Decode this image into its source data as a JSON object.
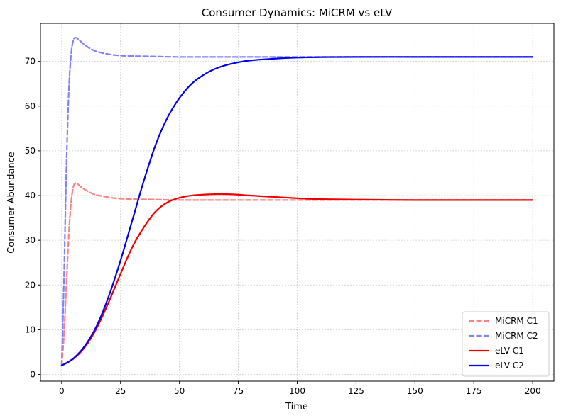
{
  "chart_data": {
    "type": "line",
    "title": "Consumer Dynamics: MiCRM vs eLV",
    "xlabel": "Time",
    "ylabel": "Consumer Abundance",
    "xlim": [
      -9,
      209
    ],
    "ylim": [
      -1.5,
      78.5
    ],
    "xticks": [
      0,
      25,
      50,
      75,
      100,
      125,
      150,
      175,
      200
    ],
    "yticks": [
      0,
      10,
      20,
      30,
      40,
      50,
      60,
      70
    ],
    "grid": true,
    "legend_position": "lower-right",
    "series": [
      {
        "name": "MiCRM C1",
        "color": "#ff8080",
        "style": "dashed",
        "x": [
          0,
          1,
          2,
          3,
          4,
          5,
          6,
          7,
          8,
          10,
          12,
          15,
          20,
          25,
          30,
          40,
          50,
          75,
          100,
          125,
          150,
          175,
          200
        ],
        "y": [
          2,
          9,
          20,
          31,
          38.5,
          42,
          42.8,
          42.5,
          42,
          41.3,
          40.7,
          40.1,
          39.6,
          39.3,
          39.2,
          39.1,
          39.0,
          39.0,
          39.0,
          39.0,
          39.0,
          39.0,
          39.0
        ]
      },
      {
        "name": "MiCRM C2",
        "color": "#8080ff",
        "style": "dashed",
        "x": [
          0,
          1,
          2,
          3,
          4,
          5,
          6,
          7,
          8,
          10,
          12,
          15,
          20,
          25,
          30,
          40,
          50,
          75,
          100,
          125,
          150,
          175,
          200
        ],
        "y": [
          2,
          22,
          46,
          63,
          71.5,
          74.8,
          75.3,
          75.0,
          74.5,
          73.6,
          72.9,
          72.2,
          71.6,
          71.3,
          71.2,
          71.1,
          71.0,
          71.0,
          71.0,
          71.0,
          71.0,
          71.0,
          71.0
        ]
      },
      {
        "name": "eLV C1",
        "color": "#ee0000",
        "style": "solid",
        "x": [
          0,
          5,
          10,
          15,
          20,
          25,
          30,
          35,
          40,
          45,
          50,
          55,
          60,
          65,
          70,
          75,
          80,
          90,
          100,
          110,
          125,
          150,
          175,
          200
        ],
        "y": [
          2,
          3.5,
          6.2,
          10.5,
          16.2,
          22.5,
          28.5,
          33,
          36.5,
          38.5,
          39.5,
          40.0,
          40.2,
          40.3,
          40.3,
          40.2,
          40.0,
          39.7,
          39.4,
          39.2,
          39.1,
          39.0,
          39.0,
          39.0
        ]
      },
      {
        "name": "eLV C2",
        "color": "#0000ee",
        "style": "solid",
        "x": [
          0,
          5,
          10,
          15,
          20,
          25,
          30,
          35,
          40,
          45,
          50,
          55,
          60,
          65,
          70,
          75,
          80,
          90,
          100,
          110,
          125,
          150,
          175,
          200
        ],
        "y": [
          2,
          3.6,
          6.5,
          11,
          17.5,
          25.5,
          34.5,
          43.5,
          51.5,
          57.5,
          61.8,
          64.9,
          66.9,
          68.3,
          69.2,
          69.8,
          70.2,
          70.6,
          70.85,
          70.95,
          71.0,
          71.0,
          71.0,
          71.0
        ]
      }
    ]
  }
}
